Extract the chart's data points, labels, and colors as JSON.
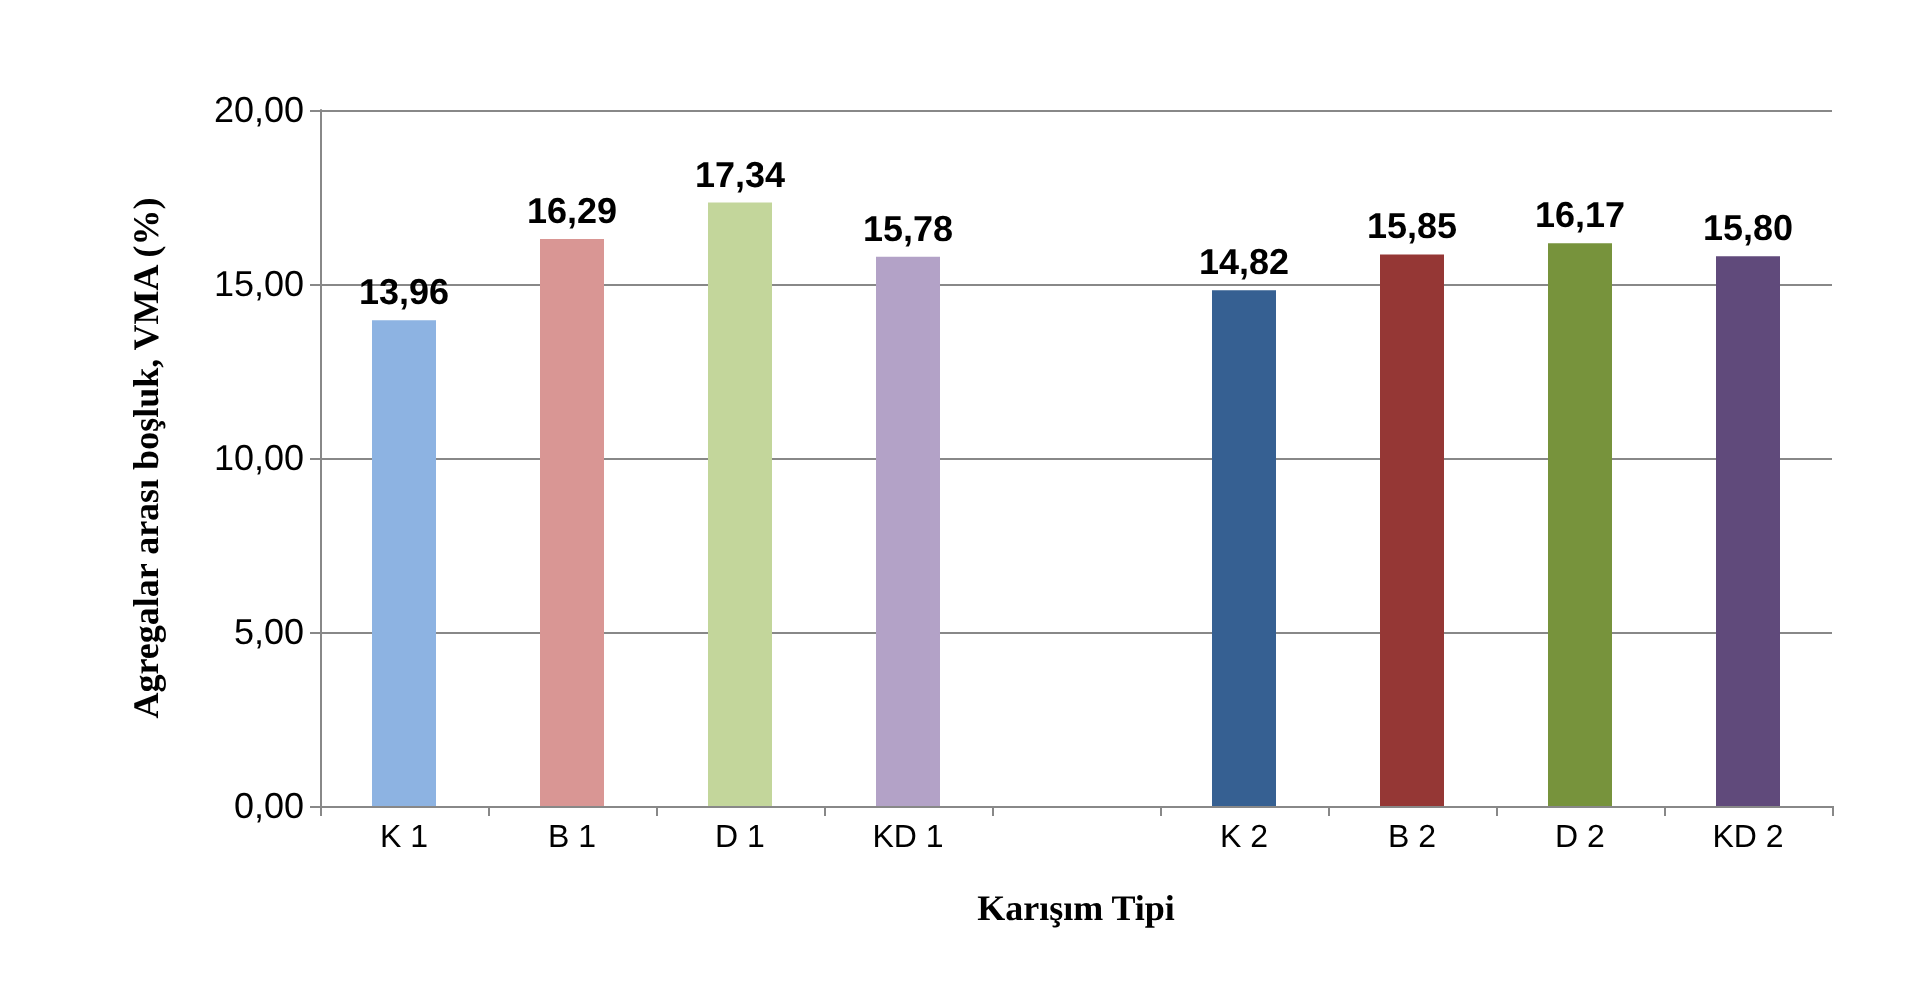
{
  "chart_data": {
    "type": "bar",
    "xlabel": "Karışım Tipi",
    "ylabel": "Agregalar arası boşluk, VMA (%)",
    "categories": [
      "K 1",
      "B 1",
      "D 1",
      "KD 1",
      null,
      "K 2",
      "B 2",
      "D 2",
      "KD 2"
    ],
    "values": [
      13.96,
      16.29,
      17.34,
      15.78,
      null,
      14.82,
      15.85,
      16.17,
      15.8
    ],
    "colors": [
      "#8db3e2",
      "#d99694",
      "#c3d69b",
      "#b3a2c7",
      "#ffffff",
      "#366092",
      "#953735",
      "#77933c",
      "#604a7b"
    ],
    "value_labels": [
      "13,96",
      "16,29",
      "17,34",
      "15,78",
      null,
      "14,82",
      "15,85",
      "16,17",
      "15,80"
    ],
    "ylim": [
      0,
      20
    ],
    "yticks": [
      {
        "value": 0,
        "label": "0,00"
      },
      {
        "value": 5,
        "label": "5,00"
      },
      {
        "value": 10,
        "label": "10,00"
      },
      {
        "value": 15,
        "label": "15,00"
      },
      {
        "value": 20,
        "label": "20,00"
      }
    ],
    "grid": "y"
  }
}
